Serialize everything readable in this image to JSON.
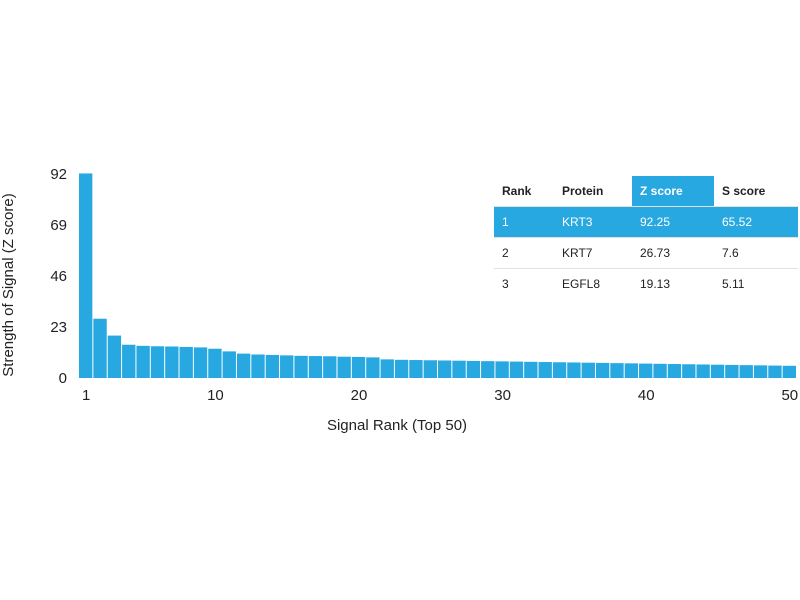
{
  "chart_data": {
    "type": "bar",
    "xlabel": "Signal Rank (Top 50)",
    "ylabel": "Strength of Signal (Z score)",
    "ylim": [
      0,
      92
    ],
    "xlim": [
      0.5,
      50.5
    ],
    "yticks": [
      0,
      23,
      46,
      69,
      92
    ],
    "xticks": [
      1,
      10,
      20,
      30,
      40,
      50
    ],
    "bar_color": "#28a8e0",
    "grid": false,
    "x": [
      1,
      2,
      3,
      4,
      5,
      6,
      7,
      8,
      9,
      10,
      11,
      12,
      13,
      14,
      15,
      16,
      17,
      18,
      19,
      20,
      21,
      22,
      23,
      24,
      25,
      26,
      27,
      28,
      29,
      30,
      31,
      32,
      33,
      34,
      35,
      36,
      37,
      38,
      39,
      40,
      41,
      42,
      43,
      44,
      45,
      46,
      47,
      48,
      49,
      50
    ],
    "values": [
      92.25,
      26.73,
      19.13,
      15,
      14.5,
      14.3,
      14.2,
      14,
      13.8,
      13.2,
      12,
      11,
      10.6,
      10.4,
      10.2,
      10,
      9.9,
      9.8,
      9.6,
      9.5,
      9.3,
      8.4,
      8.2,
      8.1,
      8,
      7.9,
      7.8,
      7.7,
      7.6,
      7.5,
      7.4,
      7.3,
      7.2,
      7.1,
      7,
      6.9,
      6.8,
      6.7,
      6.6,
      6.5,
      6.4,
      6.3,
      6.2,
      6.1,
      6,
      5.9,
      5.8,
      5.7,
      5.6,
      5.5
    ]
  },
  "table": {
    "headers": [
      "Rank",
      "Protein",
      "Z score",
      "S score"
    ],
    "highlight_color": "#28a8e0",
    "rows": [
      [
        "1",
        "KRT3",
        "92.25",
        "65.52"
      ],
      [
        "2",
        "KRT7",
        "26.73",
        "7.6"
      ],
      [
        "3",
        "EGFL8",
        "19.13",
        "5.11"
      ]
    ]
  }
}
